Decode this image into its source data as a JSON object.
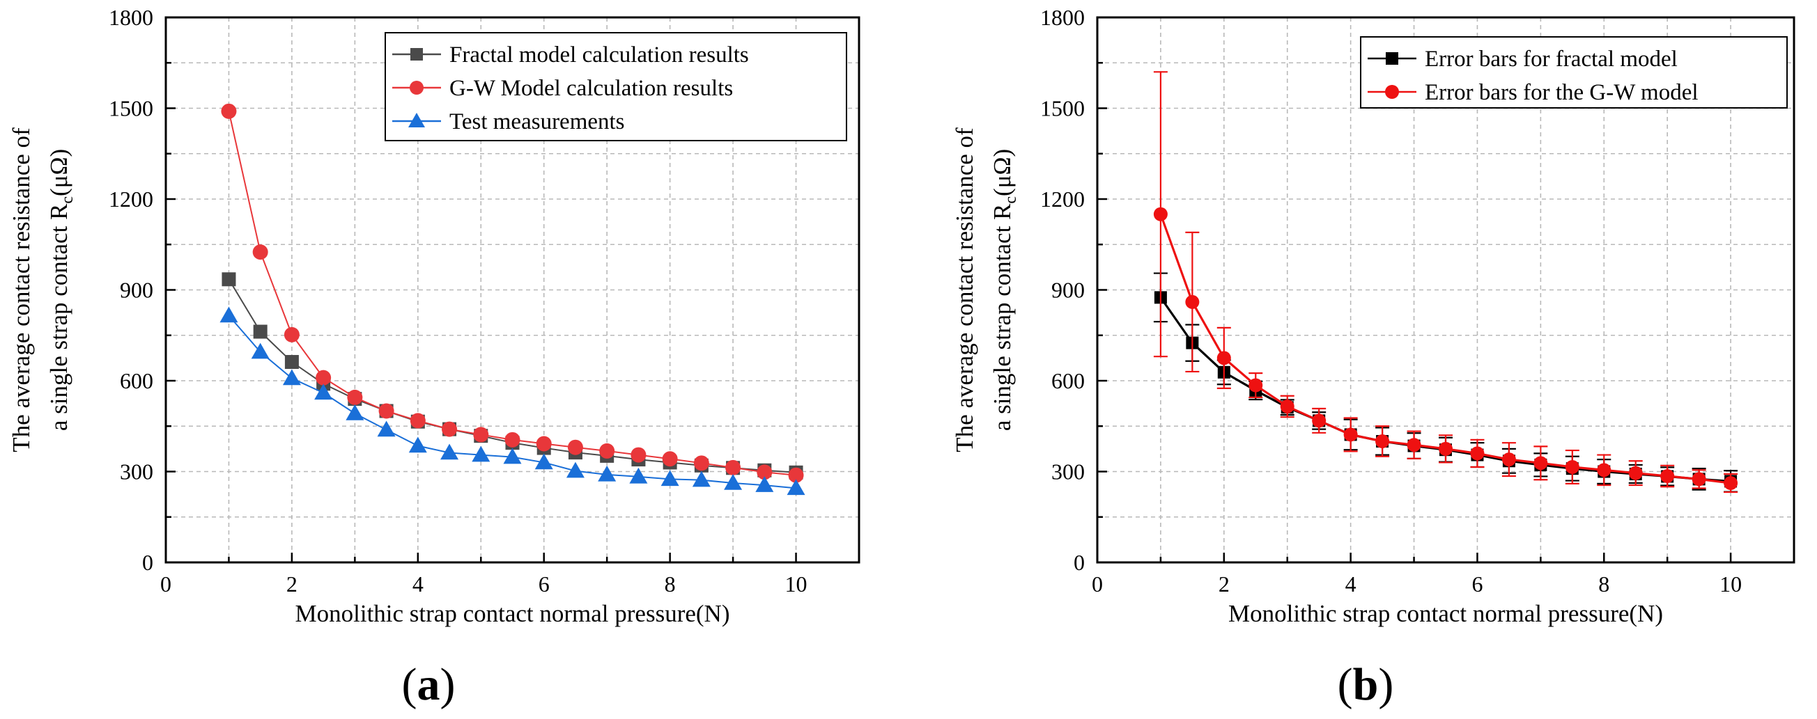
{
  "chart_data": [
    {
      "id": "a",
      "type": "line",
      "panel_label": "(a)",
      "title": "",
      "xlabel": "Monolithic strap contact  normal pressure(N)",
      "ylabel_line1": "The average contact resistance of",
      "ylabel_line2": "a single strap contact R",
      "ylabel_sub": "c",
      "ylabel_unit": "(μΩ)",
      "xlim": [
        0,
        11
      ],
      "ylim": [
        0,
        1800
      ],
      "xticks": [
        0,
        2,
        4,
        6,
        8,
        10
      ],
      "yticks": [
        0,
        300,
        600,
        900,
        1200,
        1500,
        1800
      ],
      "grid": true,
      "legend_position": "top-right",
      "x": [
        1,
        1.5,
        2,
        2.5,
        3,
        3.5,
        4,
        4.5,
        5,
        5.5,
        6,
        6.5,
        7,
        7.5,
        8,
        8.5,
        9,
        9.5,
        10
      ],
      "series": [
        {
          "name": "Fractal model calculation results",
          "color": "#4a4a4a",
          "marker": "square",
          "values": [
            935,
            762,
            662,
            590,
            540,
            500,
            465,
            440,
            418,
            395,
            378,
            363,
            352,
            340,
            330,
            320,
            312,
            304,
            297
          ]
        },
        {
          "name": "G-W Model calculation results",
          "color": "#e8373a",
          "marker": "circle",
          "values": [
            1490,
            1025,
            752,
            610,
            545,
            500,
            468,
            440,
            422,
            405,
            392,
            380,
            368,
            355,
            342,
            328,
            313,
            298,
            288
          ]
        },
        {
          "name": "Test measurements",
          "color": "#1a6fd8",
          "marker": "triangle",
          "values": [
            815,
            695,
            608,
            560,
            492,
            438,
            385,
            362,
            355,
            348,
            330,
            302,
            290,
            283,
            275,
            272,
            262,
            255,
            245
          ]
        }
      ]
    },
    {
      "id": "b",
      "type": "line",
      "panel_label": "(b)",
      "title": "",
      "xlabel": "Monolithic strap contact  normal pressure(N)",
      "ylabel_line1": "The average contact resistance of",
      "ylabel_line2": "a single strap contact R",
      "ylabel_sub": "c",
      "ylabel_unit": "(μΩ)",
      "xlim": [
        0,
        11
      ],
      "ylim": [
        0,
        1800
      ],
      "xticks": [
        0,
        2,
        4,
        6,
        8,
        10
      ],
      "yticks": [
        0,
        300,
        600,
        900,
        1200,
        1500,
        1800
      ],
      "grid": true,
      "legend_position": "top-right",
      "x": [
        1,
        1.5,
        2,
        2.5,
        3,
        3.5,
        4,
        4.5,
        5,
        5.5,
        6,
        6.5,
        7,
        7.5,
        8,
        8.5,
        9,
        9.5,
        10
      ],
      "series": [
        {
          "name": "Error bars for fractal model",
          "color": "#000000",
          "marker": "square",
          "values": [
            875,
            725,
            628,
            568,
            512,
            468,
            422,
            400,
            385,
            372,
            355,
            335,
            322,
            310,
            300,
            292,
            284,
            275,
            268
          ],
          "errors": [
            80,
            60,
            40,
            30,
            25,
            28,
            50,
            45,
            42,
            40,
            40,
            40,
            38,
            40,
            40,
            30,
            30,
            35,
            35
          ]
        },
        {
          "name": "Error bars for the G-W model",
          "color": "#ee1111",
          "marker": "circle",
          "values": [
            1150,
            860,
            675,
            585,
            515,
            468,
            422,
            400,
            388,
            375,
            360,
            340,
            328,
            315,
            305,
            295,
            285,
            275,
            262
          ],
          "errors": [
            470,
            230,
            100,
            40,
            35,
            40,
            55,
            50,
            45,
            45,
            45,
            55,
            55,
            55,
            50,
            40,
            35,
            30,
            30
          ]
        }
      ]
    }
  ]
}
